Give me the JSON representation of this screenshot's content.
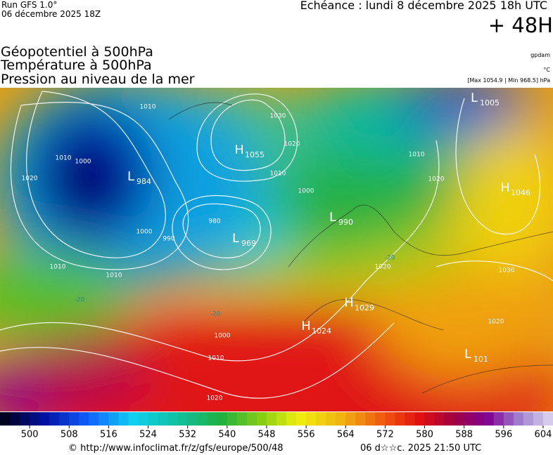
{
  "header": {
    "run": "Run GFS 1.0°",
    "date": "06 décembre 2025 18Z",
    "echeance": "Echéance : lundi 8 décembre 2025 18h UTC",
    "lead": "+ 48H"
  },
  "titles": [
    "Géopotentiel à 500hPa",
    "Température à 500hPa",
    "Pression au niveau de la mer"
  ],
  "units": {
    "geopotential": "gpdam",
    "temperature": "°C",
    "pressure": "[Max 1054.9 | Min 968.5] hPa"
  },
  "pressure_centers": [
    {
      "label": "L",
      "value": 984
    },
    {
      "label": "H",
      "value": 1055
    },
    {
      "label": "L",
      "value": 969
    },
    {
      "label": "L",
      "value": 990
    },
    {
      "label": "L",
      "value": 1005
    },
    {
      "label": "H",
      "value": 1046
    },
    {
      "label": "H",
      "value": 1029
    },
    {
      "label": "H",
      "value": 1024
    },
    {
      "label": "L",
      "value": 101
    }
  ],
  "isobar_labels": [
    1010,
    1030,
    1020,
    1010,
    1000,
    1000,
    1010,
    1020,
    1000,
    990,
    980,
    1010,
    1010,
    1010,
    1000,
    1020,
    1020,
    1030,
    1020,
    1010,
    1020
  ],
  "temperature_labels": [
    -20,
    -20,
    -20
  ],
  "colorbar": {
    "range": [
      494,
      606
    ],
    "ticks": [
      500,
      508,
      516,
      524,
      532,
      540,
      548,
      556,
      564,
      572,
      580,
      588,
      596,
      604
    ]
  },
  "footer": {
    "source": "© http://www.infoclimat.fr/z/gfs/europe/500/48",
    "time": "06 d☆☆c. 2025 21:50 UTC"
  }
}
